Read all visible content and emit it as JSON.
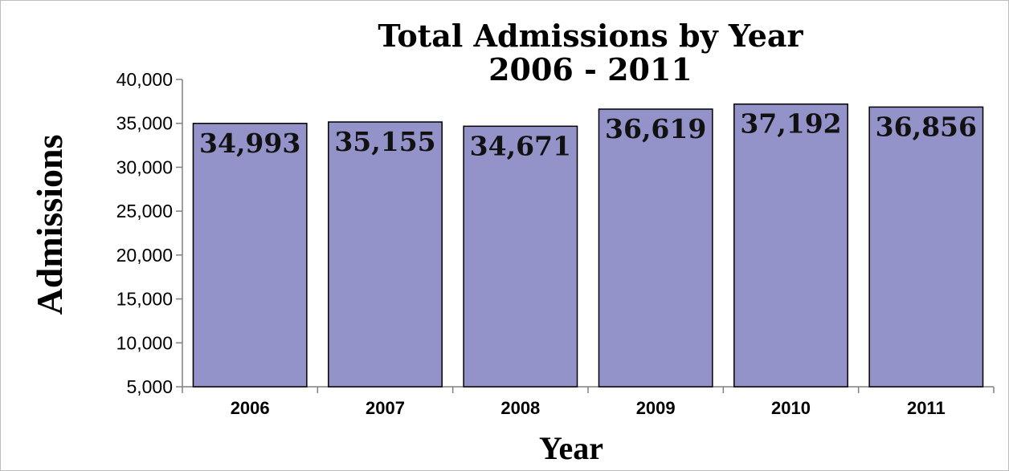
{
  "chart_data": {
    "type": "bar",
    "title": "Total Admissions by Year",
    "subtitle": "2006 - 2011",
    "xlabel": "Year",
    "ylabel": "Admissions",
    "categories": [
      "2006",
      "2007",
      "2008",
      "2009",
      "2010",
      "2011"
    ],
    "values": [
      34993,
      35155,
      34671,
      36619,
      37192,
      36856
    ],
    "data_labels": [
      "34,993",
      "35,155",
      "34,671",
      "36,619",
      "37,192",
      "36,856"
    ],
    "ylim": [
      5000,
      40000
    ],
    "yticks": [
      5000,
      10000,
      15000,
      20000,
      25000,
      30000,
      35000,
      40000
    ],
    "ytick_labels": [
      "5,000",
      "10,000",
      "15,000",
      "20,000",
      "25,000",
      "30,000",
      "35,000",
      "40,000"
    ],
    "grid": false,
    "legend": "none",
    "colors": {
      "bar_fill": "#9393c9",
      "bar_stroke": "#000000",
      "axis": "#808080"
    }
  }
}
